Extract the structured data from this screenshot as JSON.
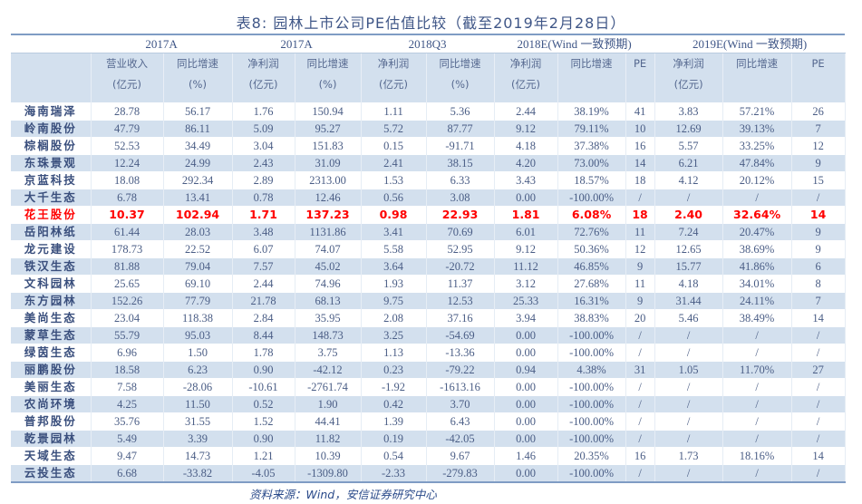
{
  "title": "表8: 园林上市公司PE估值比较（截至2019年2月28日）",
  "groups": [
    "2017A",
    "2017A",
    "2018Q3",
    "2018E(Wind 一致预期)",
    "2019E(Wind 一致预期)"
  ],
  "subheaders": [
    [
      "营业收入",
      "(亿元)"
    ],
    [
      "同比增速",
      "(%)"
    ],
    [
      "净利润",
      "(亿元)"
    ],
    [
      "同比增速",
      "(%)"
    ],
    [
      "净利润",
      "(亿元)"
    ],
    [
      "同比增速",
      "(%)"
    ],
    [
      "净利润",
      "(亿元)"
    ],
    [
      "同比增速",
      ""
    ],
    [
      "PE",
      ""
    ],
    [
      "净利润",
      "(亿元)"
    ],
    [
      "同比增速",
      ""
    ],
    [
      "PE",
      ""
    ]
  ],
  "highlight_color": "#ff0000",
  "highlight_row": 6,
  "rows": [
    [
      "海南瑞泽",
      "28.78",
      "56.17",
      "1.76",
      "150.94",
      "1.11",
      "5.36",
      "2.44",
      "38.19%",
      "41",
      "3.83",
      "57.21%",
      "26"
    ],
    [
      "岭南股份",
      "47.79",
      "86.11",
      "5.09",
      "95.27",
      "5.72",
      "87.77",
      "9.12",
      "79.11%",
      "10",
      "12.69",
      "39.13%",
      "7"
    ],
    [
      "棕榈股份",
      "52.53",
      "34.49",
      "3.04",
      "151.83",
      "0.15",
      "-91.71",
      "4.18",
      "37.38%",
      "16",
      "5.57",
      "33.25%",
      "12"
    ],
    [
      "东珠景观",
      "12.24",
      "24.99",
      "2.43",
      "31.09",
      "2.41",
      "38.15",
      "4.20",
      "73.00%",
      "14",
      "6.21",
      "47.84%",
      "9"
    ],
    [
      "京蓝科技",
      "18.08",
      "292.34",
      "2.89",
      "2313.00",
      "1.53",
      "6.33",
      "3.43",
      "18.57%",
      "18",
      "4.12",
      "20.12%",
      "15"
    ],
    [
      "大千生态",
      "6.78",
      "13.41",
      "0.78",
      "12.46",
      "0.56",
      "3.08",
      "0.00",
      "-100.00%",
      "/",
      "/",
      "/",
      "/"
    ],
    [
      "花王股份",
      "10.37",
      "102.94",
      "1.71",
      "137.23",
      "0.98",
      "22.93",
      "1.81",
      "6.08%",
      "18",
      "2.40",
      "32.64%",
      "14"
    ],
    [
      "岳阳林纸",
      "61.44",
      "28.03",
      "3.48",
      "1131.86",
      "3.41",
      "70.69",
      "6.01",
      "72.76%",
      "11",
      "7.24",
      "20.47%",
      "9"
    ],
    [
      "龙元建设",
      "178.73",
      "22.52",
      "6.07",
      "74.07",
      "5.58",
      "52.95",
      "9.12",
      "50.36%",
      "12",
      "12.65",
      "38.69%",
      "9"
    ],
    [
      "铁汉生态",
      "81.88",
      "79.04",
      "7.57",
      "45.02",
      "3.64",
      "-20.72",
      "11.12",
      "46.85%",
      "9",
      "15.77",
      "41.86%",
      "6"
    ],
    [
      "文科园林",
      "25.65",
      "69.10",
      "2.44",
      "74.96",
      "1.93",
      "11.37",
      "3.12",
      "27.68%",
      "11",
      "4.18",
      "34.01%",
      "8"
    ],
    [
      "东方园林",
      "152.26",
      "77.79",
      "21.78",
      "68.13",
      "9.75",
      "12.53",
      "25.33",
      "16.31%",
      "9",
      "31.44",
      "24.11%",
      "7"
    ],
    [
      "美尚生态",
      "23.04",
      "118.38",
      "2.84",
      "35.95",
      "2.08",
      "37.16",
      "3.94",
      "38.83%",
      "20",
      "5.46",
      "38.49%",
      "14"
    ],
    [
      "蒙草生态",
      "55.79",
      "95.03",
      "8.44",
      "148.73",
      "3.25",
      "-54.69",
      "0.00",
      "-100.00%",
      "/",
      "/",
      "/",
      "/"
    ],
    [
      "绿茵生态",
      "6.96",
      "1.50",
      "1.78",
      "3.75",
      "1.13",
      "-13.36",
      "0.00",
      "-100.00%",
      "/",
      "/",
      "/",
      "/"
    ],
    [
      "丽鹏股份",
      "18.58",
      "6.23",
      "0.90",
      "-42.12",
      "0.23",
      "-79.22",
      "0.94",
      "4.38%",
      "31",
      "1.05",
      "11.70%",
      "27"
    ],
    [
      "美丽生态",
      "7.58",
      "-28.06",
      "-10.61",
      "-2761.74",
      "-1.92",
      "-1613.16",
      "0.00",
      "-100.00%",
      "/",
      "/",
      "/",
      "/"
    ],
    [
      "农尚环境",
      "4.25",
      "11.50",
      "0.52",
      "1.90",
      "0.42",
      "3.70",
      "0.00",
      "-100.00%",
      "/",
      "/",
      "/",
      "/"
    ],
    [
      "普邦股份",
      "35.76",
      "31.55",
      "1.52",
      "44.41",
      "1.39",
      "6.43",
      "0.00",
      "-100.00%",
      "/",
      "/",
      "/",
      "/"
    ],
    [
      "乾景园林",
      "5.49",
      "3.39",
      "0.90",
      "11.82",
      "0.19",
      "-42.05",
      "0.00",
      "-100.00%",
      "/",
      "/",
      "/",
      "/"
    ],
    [
      "天域生态",
      "9.47",
      "14.73",
      "1.21",
      "10.39",
      "0.54",
      "9.67",
      "1.46",
      "20.35%",
      "16",
      "1.73",
      "18.16%",
      "14"
    ],
    [
      "云投生态",
      "6.68",
      "-33.82",
      "-4.05",
      "-1309.80",
      "-2.33",
      "-279.83",
      "0.00",
      "-100.00%",
      "/",
      "/",
      "/",
      "/"
    ]
  ],
  "source": "资料来源：Wind，安信证券研究中心"
}
